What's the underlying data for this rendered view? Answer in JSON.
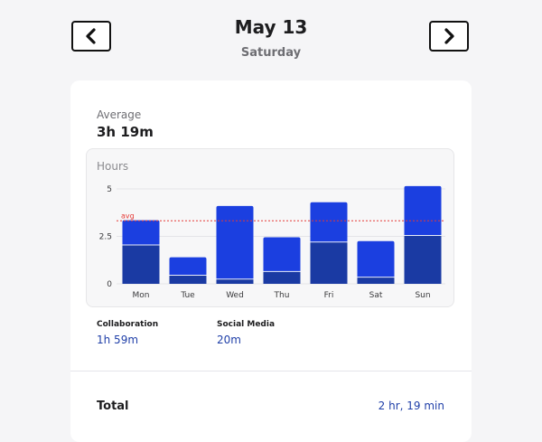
{
  "header": {
    "date": "May 13",
    "weekday": "Saturday"
  },
  "summary": {
    "average_label": "Average",
    "average_value": "3h 19m"
  },
  "legend": [
    {
      "name": "Collaboration",
      "value": "1h 59m"
    },
    {
      "name": "Social Media",
      "value": "20m"
    }
  ],
  "total": {
    "label": "Total",
    "value": "2 hr, 19 min"
  },
  "colors": {
    "accent": "#1f3fa8",
    "bar_top": "#1b3fe0",
    "bar_bottom": "#1a3aa3",
    "avg_line": "#e53935"
  },
  "chart_data": {
    "type": "bar",
    "stacked": true,
    "ylabel": "Hours",
    "ylim": [
      0,
      5
    ],
    "yticks": [
      0,
      2.5,
      5
    ],
    "categories": [
      "Mon",
      "Tue",
      "Wed",
      "Thu",
      "Fri",
      "Sat",
      "Sun"
    ],
    "series": [
      {
        "values": [
          2.05,
          0.45,
          0.25,
          0.65,
          2.2,
          0.35,
          2.55
        ]
      },
      {
        "values": [
          1.3,
          0.95,
          3.85,
          1.8,
          2.1,
          1.9,
          2.6
        ]
      }
    ],
    "average_line": {
      "label": "avg",
      "value": 3.32
    },
    "grid": "horizontal"
  }
}
